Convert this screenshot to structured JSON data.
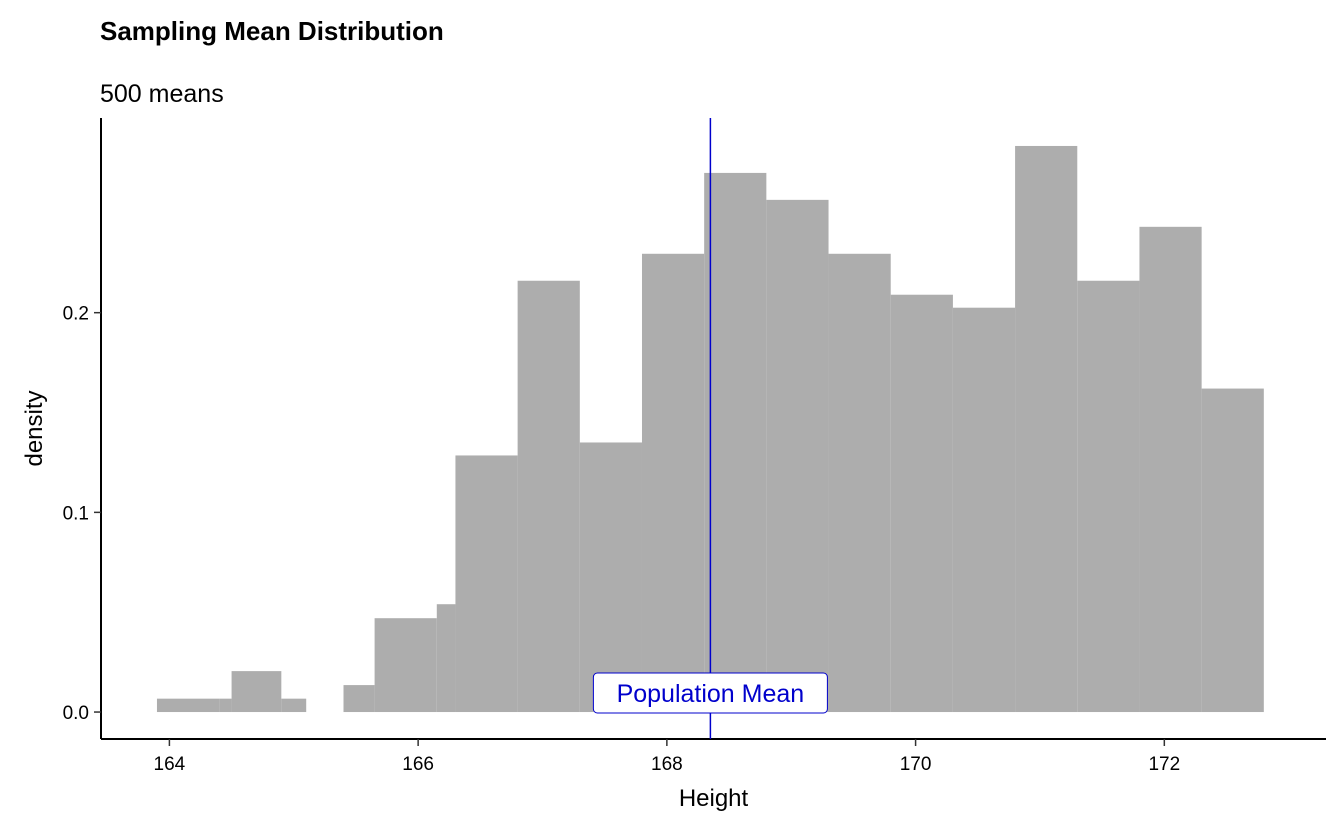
{
  "chart_data": {
    "type": "histogram",
    "title": "Sampling Mean Distribution",
    "subtitle": "500 means",
    "xlabel": "Height",
    "ylabel": "density",
    "xlim": [
      163.45,
      173.3
    ],
    "ylim": [
      -0.0135,
      0.2975
    ],
    "x_ticks": [
      164,
      166,
      168,
      170,
      172
    ],
    "x_tick_labels": [
      "164",
      "166",
      "168",
      "170",
      "172"
    ],
    "y_ticks": [
      0.0,
      0.1,
      0.2
    ],
    "y_tick_labels": [
      "0.0",
      "0.1",
      "0.2"
    ],
    "bar_color": "#ADADAD",
    "bins": [
      {
        "x0": 163.9,
        "x1": 164.4,
        "density": 0.0067
      },
      {
        "x0": 164.4,
        "x1": 164.5,
        "density": 0.0067
      },
      {
        "x0": 164.5,
        "x1": 164.9,
        "density": 0.0205
      },
      {
        "x0": 164.9,
        "x1": 165.1,
        "density": 0.0067
      },
      {
        "x0": 165.4,
        "x1": 165.65,
        "density": 0.0135
      },
      {
        "x0": 165.65,
        "x1": 166.15,
        "density": 0.047
      },
      {
        "x0": 166.15,
        "x1": 166.3,
        "density": 0.054
      },
      {
        "x0": 166.3,
        "x1": 166.8,
        "density": 0.1285
      },
      {
        "x0": 166.8,
        "x1": 167.3,
        "density": 0.216
      },
      {
        "x0": 167.3,
        "x1": 167.8,
        "density": 0.135
      },
      {
        "x0": 167.8,
        "x1": 168.3,
        "density": 0.2295
      },
      {
        "x0": 168.3,
        "x1": 168.8,
        "density": 0.27
      },
      {
        "x0": 168.8,
        "x1": 169.3,
        "density": 0.2565
      },
      {
        "x0": 169.3,
        "x1": 169.8,
        "density": 0.2295
      },
      {
        "x0": 169.8,
        "x1": 170.3,
        "density": 0.209
      },
      {
        "x0": 170.3,
        "x1": 170.8,
        "density": 0.2025
      },
      {
        "x0": 170.8,
        "x1": 171.3,
        "density": 0.2835
      },
      {
        "x0": 171.3,
        "x1": 171.8,
        "density": 0.216
      },
      {
        "x0": 171.8,
        "x1": 172.3,
        "density": 0.243
      },
      {
        "x0": 172.3,
        "x1": 172.8,
        "density": 0.162
      }
    ],
    "reference_line": {
      "x": 168.35,
      "label": "Population Mean",
      "color": "#0000CC"
    }
  }
}
